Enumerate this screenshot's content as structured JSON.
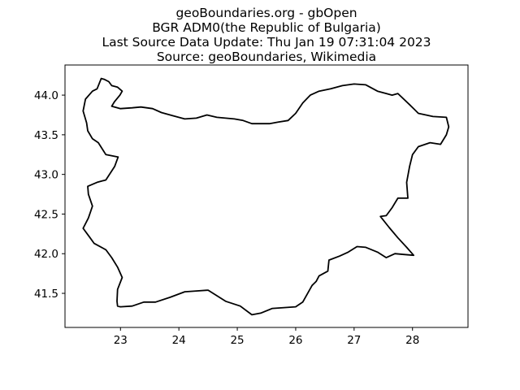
{
  "figure": {
    "title_lines": [
      "geoBoundaries.org - gbOpen",
      "BGR ADM0(the Republic of Bulgaria)",
      "Last Source Data Update: Thu Jan 19 07:31:04 2023",
      "Source: geoBoundaries, Wikimedia"
    ]
  },
  "chart_data": {
    "type": "map",
    "xlim": [
      22.05,
      28.95
    ],
    "ylim": [
      41.07,
      44.38
    ],
    "x_ticks": [
      23,
      24,
      25,
      26,
      27,
      28
    ],
    "y_ticks": [
      41.5,
      42.0,
      42.5,
      43.0,
      43.5,
      44.0
    ],
    "y_tick_labels": [
      "41.5",
      "42.0",
      "42.5",
      "43.0",
      "43.5",
      "44.0"
    ],
    "grid": false,
    "boundary_color": "#000000",
    "boundary": [
      [
        22.67,
        44.21
      ],
      [
        22.72,
        44.2
      ],
      [
        22.8,
        44.17
      ],
      [
        22.85,
        44.12
      ],
      [
        22.95,
        44.1
      ],
      [
        23.03,
        44.05
      ],
      [
        22.99,
        44.0
      ],
      [
        22.9,
        43.92
      ],
      [
        22.85,
        43.86
      ],
      [
        23.0,
        43.83
      ],
      [
        23.2,
        43.84
      ],
      [
        23.35,
        43.85
      ],
      [
        23.55,
        43.83
      ],
      [
        23.7,
        43.78
      ],
      [
        23.9,
        43.74
      ],
      [
        24.1,
        43.7
      ],
      [
        24.3,
        43.71
      ],
      [
        24.48,
        43.75
      ],
      [
        24.65,
        43.72
      ],
      [
        24.8,
        43.71
      ],
      [
        24.95,
        43.7
      ],
      [
        25.1,
        43.68
      ],
      [
        25.25,
        43.64
      ],
      [
        25.4,
        43.64
      ],
      [
        25.55,
        43.64
      ],
      [
        25.7,
        43.66
      ],
      [
        25.87,
        43.68
      ],
      [
        26.0,
        43.77
      ],
      [
        26.12,
        43.9
      ],
      [
        26.25,
        44.0
      ],
      [
        26.4,
        44.05
      ],
      [
        26.6,
        44.08
      ],
      [
        26.8,
        44.12
      ],
      [
        27.0,
        44.14
      ],
      [
        27.2,
        44.13
      ],
      [
        27.4,
        44.05
      ],
      [
        27.55,
        44.02
      ],
      [
        27.65,
        44.0
      ],
      [
        27.75,
        44.02
      ],
      [
        27.95,
        43.88
      ],
      [
        28.1,
        43.77
      ],
      [
        28.35,
        43.73
      ],
      [
        28.58,
        43.72
      ],
      [
        28.62,
        43.6
      ],
      [
        28.58,
        43.5
      ],
      [
        28.48,
        43.38
      ],
      [
        28.3,
        43.4
      ],
      [
        28.1,
        43.35
      ],
      [
        28.0,
        43.25
      ],
      [
        27.95,
        43.1
      ],
      [
        27.9,
        42.9
      ],
      [
        27.92,
        42.7
      ],
      [
        27.75,
        42.7
      ],
      [
        27.65,
        42.58
      ],
      [
        27.55,
        42.48
      ],
      [
        27.45,
        42.47
      ],
      [
        27.6,
        42.33
      ],
      [
        27.75,
        42.2
      ],
      [
        27.9,
        42.08
      ],
      [
        28.02,
        41.98
      ],
      [
        27.85,
        41.99
      ],
      [
        27.7,
        42.0
      ],
      [
        27.55,
        41.95
      ],
      [
        27.4,
        42.02
      ],
      [
        27.2,
        42.08
      ],
      [
        27.05,
        42.09
      ],
      [
        26.9,
        42.02
      ],
      [
        26.75,
        41.97
      ],
      [
        26.57,
        41.92
      ],
      [
        26.55,
        41.78
      ],
      [
        26.4,
        41.72
      ],
      [
        26.35,
        41.65
      ],
      [
        26.28,
        41.6
      ],
      [
        26.12,
        41.39
      ],
      [
        26.0,
        41.33
      ],
      [
        25.8,
        41.32
      ],
      [
        25.6,
        41.31
      ],
      [
        25.4,
        41.25
      ],
      [
        25.25,
        41.23
      ],
      [
        25.05,
        41.34
      ],
      [
        24.8,
        41.4
      ],
      [
        24.5,
        41.54
      ],
      [
        24.3,
        41.53
      ],
      [
        24.1,
        41.52
      ],
      [
        23.85,
        41.45
      ],
      [
        23.6,
        41.39
      ],
      [
        23.4,
        41.39
      ],
      [
        23.2,
        41.34
      ],
      [
        23.0,
        41.33
      ],
      [
        22.95,
        41.34
      ],
      [
        22.94,
        41.4
      ],
      [
        22.95,
        41.55
      ],
      [
        23.03,
        41.7
      ],
      [
        22.95,
        41.83
      ],
      [
        22.85,
        41.95
      ],
      [
        22.75,
        42.05
      ],
      [
        22.55,
        42.13
      ],
      [
        22.48,
        42.2
      ],
      [
        22.36,
        42.32
      ],
      [
        22.45,
        42.45
      ],
      [
        22.52,
        42.6
      ],
      [
        22.45,
        42.75
      ],
      [
        22.44,
        42.85
      ],
      [
        22.6,
        42.9
      ],
      [
        22.75,
        42.93
      ],
      [
        22.9,
        43.1
      ],
      [
        22.96,
        43.22
      ],
      [
        22.75,
        43.25
      ],
      [
        22.62,
        43.4
      ],
      [
        22.52,
        43.45
      ],
      [
        22.44,
        43.55
      ],
      [
        22.42,
        43.65
      ],
      [
        22.36,
        43.8
      ],
      [
        22.4,
        43.95
      ],
      [
        22.52,
        44.05
      ],
      [
        22.6,
        44.08
      ],
      [
        22.67,
        44.21
      ]
    ]
  }
}
